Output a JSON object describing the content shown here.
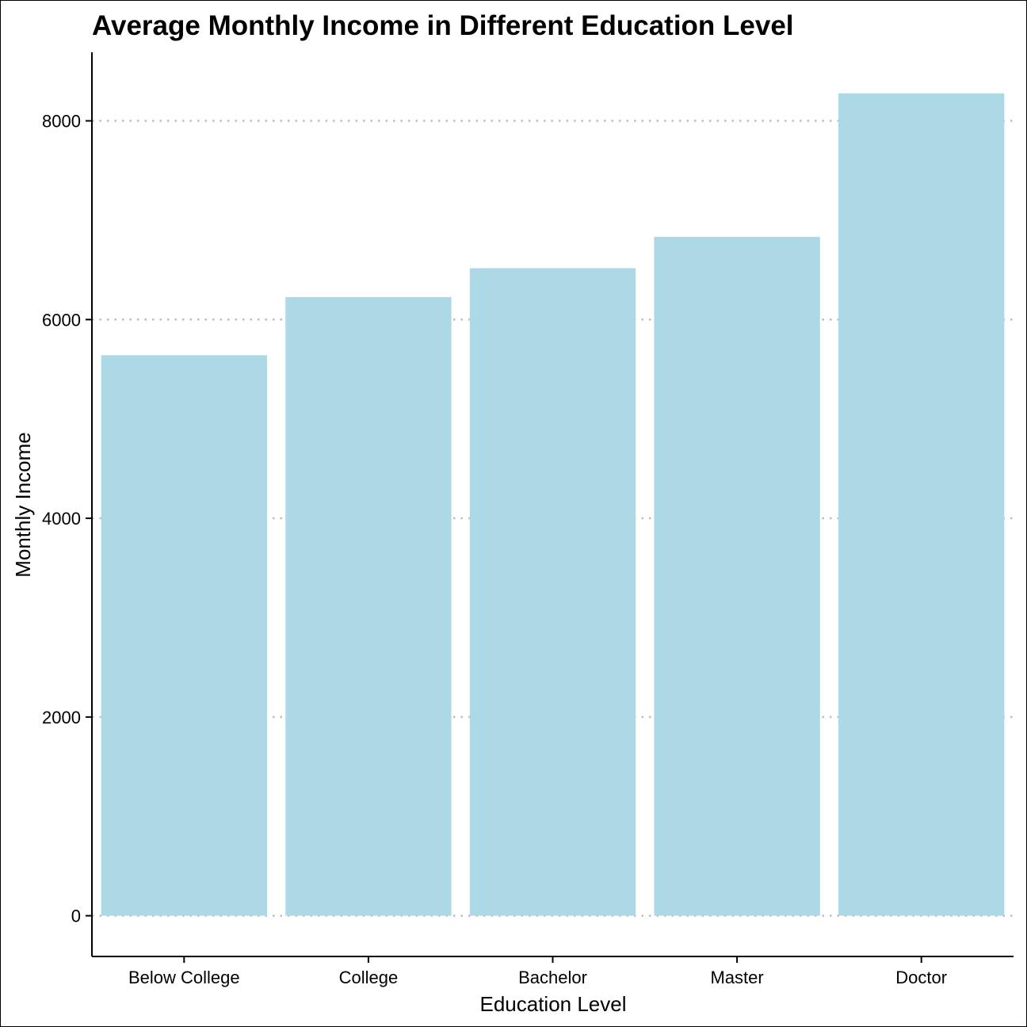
{
  "chart_data": {
    "type": "bar",
    "title": "Average Monthly Income in Different Education Level",
    "xlabel": "Education Level",
    "ylabel": "Monthly Income",
    "categories": [
      "Below College",
      "College",
      "Bachelor",
      "Master",
      "Doctor"
    ],
    "values": [
      5641,
      6227,
      6517,
      6833,
      8277
    ],
    "yticks": [
      0,
      2000,
      4000,
      6000,
      8000
    ],
    "ylim": [
      -410,
      8690
    ],
    "grid": "horizontal dotted",
    "colors": {
      "bar": "#ADD8E6",
      "grid": "#BEBEBE",
      "axis": "#000000"
    }
  }
}
